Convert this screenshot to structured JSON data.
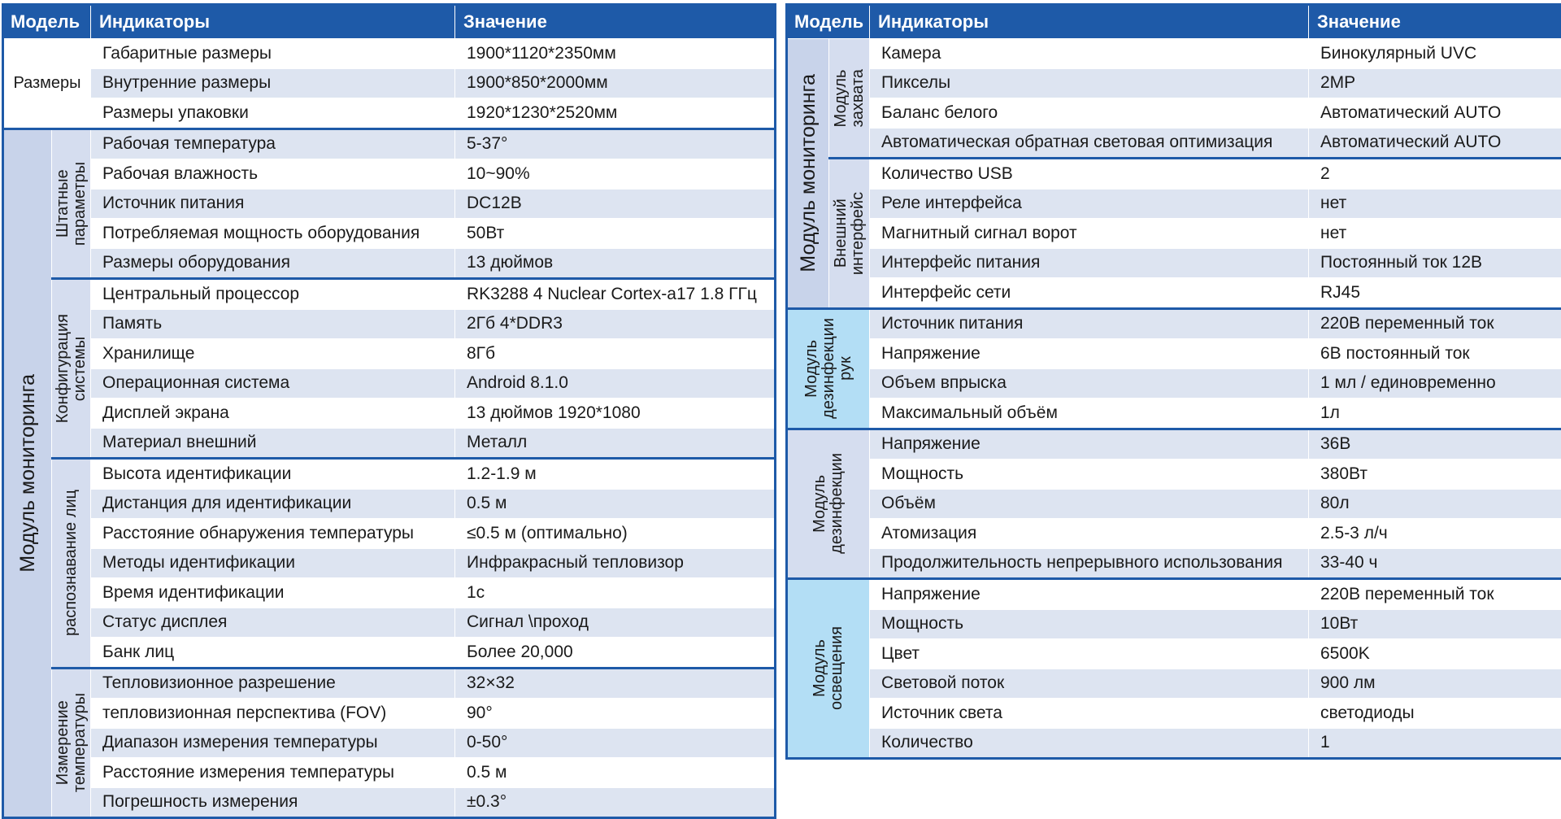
{
  "left_table": {
    "headers": {
      "model": "Модель",
      "indicators": "Индикаторы",
      "value": "Значение"
    },
    "sizes": {
      "label": "Размеры",
      "rows": [
        {
          "indicator": "Габаритные размеры",
          "value": "1900*1120*2350мм"
        },
        {
          "indicator": "Внутренние размеры",
          "value": "1900*850*2000мм"
        },
        {
          "indicator": "Размеры упаковки",
          "value": "1920*1230*2520мм"
        }
      ]
    },
    "module_label": "Модуль мониторинга",
    "groups": [
      {
        "label": "Штатные\nпараметры",
        "rows": [
          {
            "indicator": "Рабочая температура",
            "value": "5-37°"
          },
          {
            "indicator": "Рабочая влажность",
            "value": "10~90%"
          },
          {
            "indicator": "Источник питания",
            "value": "DC12B"
          },
          {
            "indicator": "Потребляемая мощность оборудования",
            "value": "50Вт"
          },
          {
            "indicator": "Размеры оборудования",
            "value": "13 дюймов"
          }
        ]
      },
      {
        "label": "Конфигурация\nсистемы",
        "rows": [
          {
            "indicator": "Центральный процессор",
            "value": " RK3288 4 Nuclear Cortex-a17 1.8 ГГц"
          },
          {
            "indicator": "Память",
            "value": "2Гб 4*DDR3"
          },
          {
            "indicator": "Хранилище",
            "value": "8Гб"
          },
          {
            "indicator": "Операционная система",
            "value": "Android 8.1.0"
          },
          {
            "indicator": "Дисплей экрана",
            "value": "13 дюймов 1920*1080"
          },
          {
            "indicator": "Материал внешний",
            "value": "Металл"
          }
        ]
      },
      {
        "label": "распознавание лиц",
        "rows": [
          {
            "indicator": "Высота идентификации",
            "value": "1.2-1.9 м"
          },
          {
            "indicator": "Дистанция для идентификации",
            "value": " 0.5 м"
          },
          {
            "indicator": "Расстояние обнаружения температуры",
            "value": "≤0.5 м (оптимально)"
          },
          {
            "indicator": "Методы идентификации",
            "value": "Инфракрасный тепловизор"
          },
          {
            "indicator": "Время идентификации",
            "value": "1с"
          },
          {
            "indicator": "Статус дисплея",
            "value": "Сигнал \\проход"
          },
          {
            "indicator": "Банк лиц",
            "value": "Более 20,000"
          }
        ]
      },
      {
        "label": "Измерение\nтемпературы",
        "rows": [
          {
            "indicator": "Тепловизионное разрешение",
            "value": "32×32"
          },
          {
            "indicator": "тепловизионная перспектива (FOV)",
            "value": "90°"
          },
          {
            "indicator": "Диапазон измерения температуры",
            "value": "0-50°"
          },
          {
            "indicator": "Расстояние измерения температуры",
            "value": "0.5 м"
          },
          {
            "indicator": "Погрешность измерения",
            "value": "±0.3°"
          }
        ]
      }
    ]
  },
  "right_table": {
    "headers": {
      "model": "Модель",
      "indicators": "Индикаторы",
      "value": "Значение"
    },
    "monitoring": {
      "label": "Модуль мониторинга",
      "groups": [
        {
          "label": "Модуль\nзахвата",
          "rows": [
            {
              "indicator": "Камера",
              "value": "Бинокулярный UVC"
            },
            {
              "indicator": "Пикселы",
              "value": "2MP"
            },
            {
              "indicator": "Баланс белого",
              "value": "Автоматический AUTO"
            },
            {
              "indicator": "Автоматическая обратная световая оптимизация",
              "value": "Автоматический  AUTO"
            }
          ]
        },
        {
          "label": "Внешний\nинтерфейс",
          "rows": [
            {
              "indicator": "Количество USB",
              "value": "2"
            },
            {
              "indicator": "Реле интерфейса",
              "value": "нет"
            },
            {
              "indicator": "Магнитный сигнал ворот",
              "value": "нет"
            },
            {
              "indicator": "Интерфейс питания",
              "value": "Постоянный ток 12В"
            },
            {
              "indicator": "Интерфейс сети",
              "value": "RJ45"
            }
          ]
        }
      ]
    },
    "modules": [
      {
        "label": "Модуль\nдезинфекции\nрук",
        "rows": [
          {
            "indicator": "Источник питания",
            "value": "220В переменный ток"
          },
          {
            "indicator": "Напряжение",
            "value": "6В постоянный ток"
          },
          {
            "indicator": "Объем впрыска",
            "value": "1 мл / единовременно"
          },
          {
            "indicator": "Максимальный объём",
            "value": "1л"
          }
        ]
      },
      {
        "label": "Модуль\nдезинфекции",
        "rows": [
          {
            "indicator": "Напряжение",
            "value": "36В"
          },
          {
            "indicator": "Мощность",
            "value": "380Вт"
          },
          {
            "indicator": "Объём",
            "value": "80л"
          },
          {
            "indicator": "Атомизация",
            "value": "2.5-3 л/ч"
          },
          {
            "indicator": "Продолжительность непрерывного использования",
            "value": "33-40 ч"
          }
        ]
      },
      {
        "label": "Модуль\nосвещения",
        "rows": [
          {
            "indicator": "Напряжение",
            "value": "220В переменный ток"
          },
          {
            "indicator": "Мощность",
            "value": "10Вт"
          },
          {
            "indicator": "Цвет",
            "value": "6500K"
          },
          {
            "indicator": "Световой поток",
            "value": "900 лм"
          },
          {
            "indicator": "Источник света",
            "value": "светодиоды"
          },
          {
            "indicator": "Количество",
            "value": "1"
          }
        ]
      }
    ]
  }
}
